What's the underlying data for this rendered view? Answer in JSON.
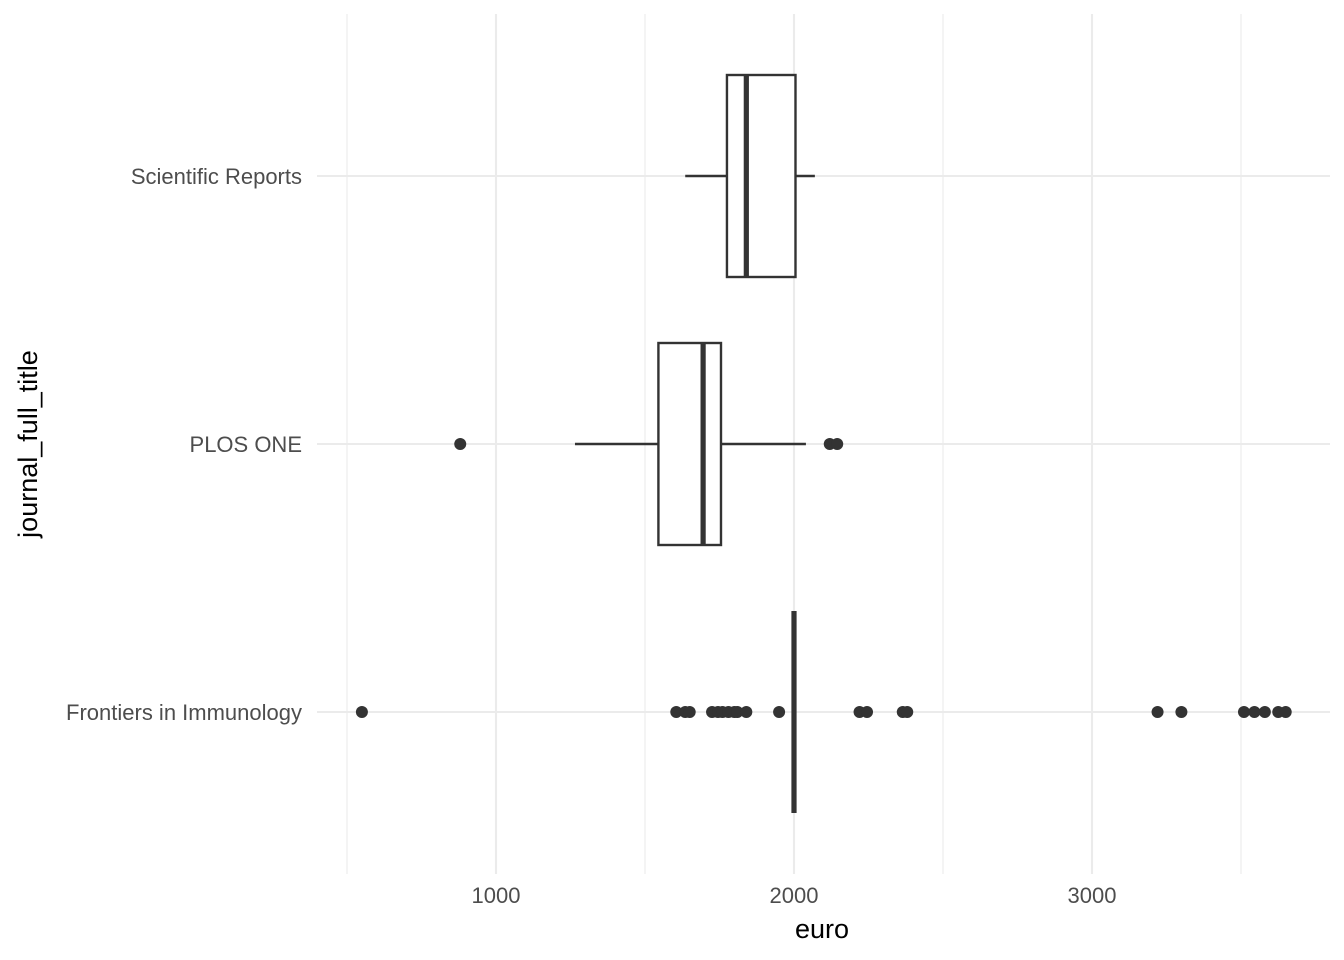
{
  "chart_data": {
    "type": "boxplot",
    "orientation": "horizontal",
    "xlabel": "euro",
    "ylabel": "journal_full_title",
    "xlim": [
      450,
      3790
    ],
    "x_ticks": [
      1000,
      2000,
      3000
    ],
    "x_minor_gridlines": [
      500,
      1500,
      2500,
      3500
    ],
    "grid": true,
    "theme": "minimal",
    "colors": {
      "box_line": "#333333",
      "grid": "#ebebeb",
      "tick_text": "#4d4d4d",
      "title_text": "#000000"
    },
    "categories": [
      "Frontiers in Immunology",
      "PLOS ONE",
      "Scientific Reports"
    ],
    "boxes": [
      {
        "category": "Frontiers in Immunology",
        "whisker_low": 2000,
        "q1": 2000,
        "median": 2000,
        "q3": 2000,
        "whisker_high": 2000,
        "outliers": [
          550,
          1605,
          1635,
          1650,
          1725,
          1745,
          1760,
          1780,
          1800,
          1810,
          1840,
          1950,
          2220,
          2245,
          2365,
          2380,
          3220,
          3300,
          3510,
          3545,
          3580,
          3625,
          3650
        ]
      },
      {
        "category": "PLOS ONE",
        "whisker_low": 1265,
        "q1": 1545,
        "median": 1695,
        "q3": 1755,
        "whisker_high": 2040,
        "outliers": [
          880,
          2120,
          2145
        ]
      },
      {
        "category": "Scientific Reports",
        "whisker_low": 1635,
        "q1": 1775,
        "median": 1840,
        "q3": 2005,
        "whisker_high": 2070,
        "outliers": []
      }
    ]
  }
}
